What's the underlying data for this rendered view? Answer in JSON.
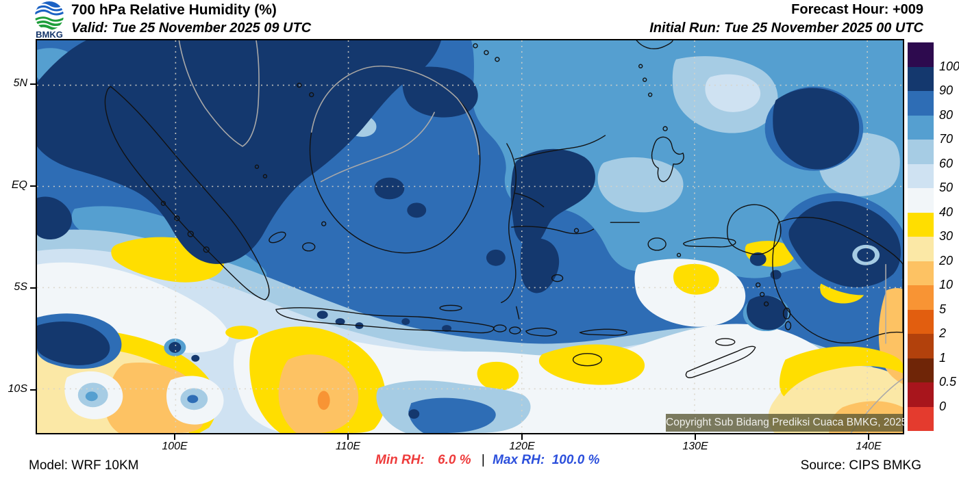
{
  "header": {
    "logo": "BMKG",
    "title": "700 hPa Relative Humidity (%)",
    "valid": "Valid: Tue 25 November 2025 09 UTC",
    "forecast_hour": "Forecast Hour: +009",
    "initial_run": "Initial Run: Tue 25 November 2025 00 UTC"
  },
  "map": {
    "lat_ticks": [
      "5N",
      "EQ",
      "5S",
      "10S"
    ],
    "lon_ticks": [
      "100E",
      "110E",
      "120E",
      "130E",
      "140E"
    ],
    "copyright": "Copyright Sub Bidang Prediksi Cuaca BMKG, 2025"
  },
  "colorbar": {
    "labels": [
      "100",
      "90",
      "80",
      "70",
      "60",
      "50",
      "40",
      "30",
      "20",
      "10",
      "5",
      "2",
      "1",
      "0.5",
      "0"
    ],
    "colors": [
      "#2D0A4E",
      "#14386E",
      "#2E6DB5",
      "#559FD0",
      "#A6CCE4",
      "#CFE2F2",
      "#F2F6F9",
      "#FFDE00",
      "#FBE8A6",
      "#FDC263",
      "#F89434",
      "#E25E0F",
      "#B2410C",
      "#6F2507",
      "#A8151C",
      "#E43B2E"
    ]
  },
  "footer": {
    "model": "Model: WRF 10KM",
    "min_label": "Min RH:",
    "min_value": "6.0 %",
    "separator": "|",
    "max_label": "Max RH:",
    "max_value": "100.0 %",
    "source": "Source: CIPS BMKG",
    "min_color": "#EE3B3B",
    "max_color": "#2C50DC"
  },
  "chart_data": {
    "type": "heatmap",
    "title": "700 hPa Relative Humidity (%)",
    "variable": "Relative Humidity",
    "level": "700 hPa",
    "units": "%",
    "valid_time": "Tue 25 November 2025 09 UTC",
    "initial_run": "Tue 25 November 2025 00 UTC",
    "forecast_hour": "+009",
    "model": "WRF 10KM",
    "source": "CIPS BMKG",
    "min_value": 6.0,
    "max_value": 100.0,
    "x_ticks": [
      "100E",
      "110E",
      "120E",
      "130E",
      "140E"
    ],
    "y_ticks": [
      "5N",
      "EQ",
      "5S",
      "10S"
    ],
    "colorbar_levels": [
      0,
      0.5,
      1,
      2,
      5,
      10,
      20,
      30,
      40,
      50,
      60,
      70,
      80,
      90,
      100
    ],
    "legend_position": "right"
  }
}
